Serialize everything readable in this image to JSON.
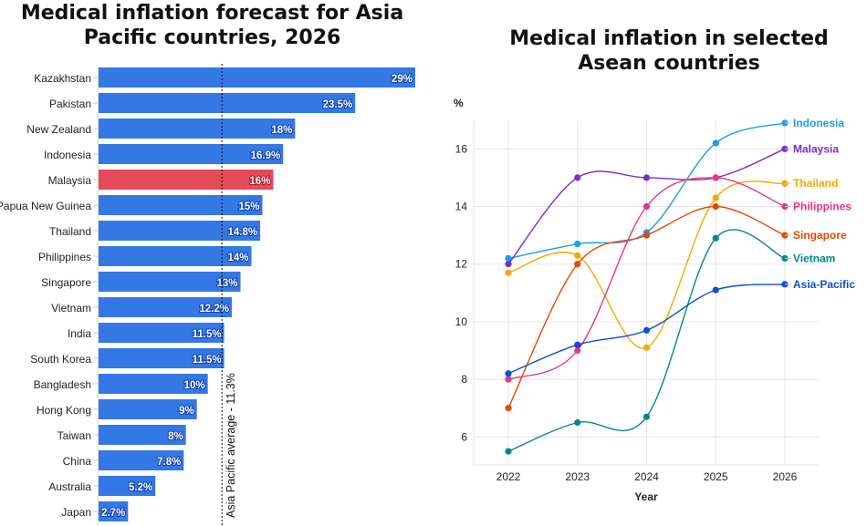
{
  "chart_data": [
    {
      "type": "bar",
      "orientation": "horizontal",
      "title": "Medical inflation forecast for Asia Pacific countries, 2026",
      "categories": [
        "Kazakhstan",
        "Pakistan",
        "New Zealand",
        "Indonesia",
        "Malaysia",
        "Papua New Guinea",
        "Thailand",
        "Philippines",
        "Singapore",
        "Vietnam",
        "India",
        "South Korea",
        "Bangladesh",
        "Hong Kong",
        "Taiwan",
        "China",
        "Australia",
        "Japan"
      ],
      "values": [
        29,
        23.5,
        18,
        16.9,
        16,
        15,
        14.8,
        14,
        13,
        12.2,
        11.5,
        11.5,
        10,
        9,
        8,
        7.8,
        5.2,
        2.7
      ],
      "data_labels": [
        "29%",
        "23.5%",
        "18%",
        "16.9%",
        "16%",
        "15%",
        "14.8%",
        "14%",
        "13%",
        "12.2%",
        "11.5%",
        "11.5%",
        "10%",
        "9%",
        "8%",
        "7.8%",
        "5.2%",
        "2.7%"
      ],
      "highlight": "Malaysia",
      "bar_color": "#3478e6",
      "highlight_color": "#e54a59",
      "reference_line": {
        "value": 11.3,
        "label": "Asia Pacific average - 11.3%"
      },
      "xlim": [
        0,
        29
      ]
    },
    {
      "type": "line",
      "title": "Medical inflation in selected Asean countries",
      "xlabel": "Year",
      "ylabel": "%",
      "x": [
        2022,
        2023,
        2024,
        2025,
        2026
      ],
      "yticks": [
        6,
        8,
        10,
        12,
        14,
        16
      ],
      "ylim": [
        5,
        17
      ],
      "grid": true,
      "legend": "end-labels-right",
      "series": [
        {
          "name": "Indonesia",
          "color": "#1a9cf0",
          "values": [
            12.2,
            12.7,
            13.1,
            16.2,
            16.9
          ]
        },
        {
          "name": "Malaysia",
          "color": "#7b2fd0",
          "values": [
            12,
            15,
            15,
            15,
            16
          ]
        },
        {
          "name": "Thailand",
          "color": "#f2a900",
          "values": [
            11.7,
            12.3,
            9.1,
            14.3,
            14.8
          ]
        },
        {
          "name": "Philippines",
          "color": "#e8338a",
          "values": [
            8,
            9,
            14,
            15,
            14
          ]
        },
        {
          "name": "Singapore",
          "color": "#e84a00",
          "values": [
            7,
            12,
            13,
            14,
            13
          ]
        },
        {
          "name": "Vietnam",
          "color": "#00898a",
          "values": [
            5.5,
            6.5,
            6.7,
            12.9,
            12.2
          ]
        },
        {
          "name": "Asia-Pacific",
          "color": "#0a4fd6",
          "values": [
            8.2,
            9.2,
            9.7,
            11.1,
            11.3
          ]
        }
      ]
    }
  ]
}
